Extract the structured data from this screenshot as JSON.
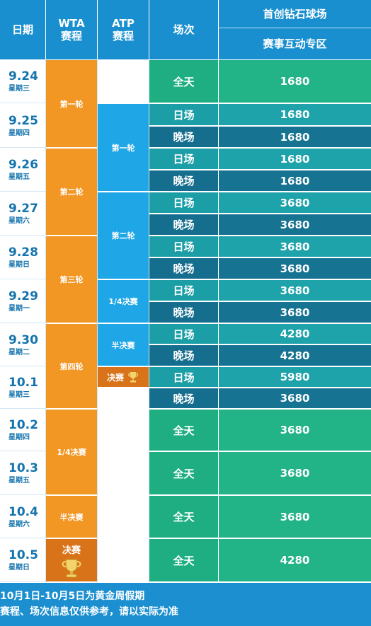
{
  "header": {
    "date": "日期",
    "wta_line1": "WTA",
    "wta_line2": "赛程",
    "atp_line1": "ATP",
    "atp_line2": "赛程",
    "session": "场次",
    "venue": "首创钻石球场",
    "zone": "赛事互动专区"
  },
  "dates": [
    {
      "date": "9.24",
      "weekday": "星期三"
    },
    {
      "date": "9.25",
      "weekday": "星期四"
    },
    {
      "date": "9.26",
      "weekday": "星期五"
    },
    {
      "date": "9.27",
      "weekday": "星期六"
    },
    {
      "date": "9.28",
      "weekday": "星期日"
    },
    {
      "date": "9.29",
      "weekday": "星期一"
    },
    {
      "date": "9.30",
      "weekday": "星期二"
    },
    {
      "date": "10.1",
      "weekday": "星期三"
    },
    {
      "date": "10.2",
      "weekday": "星期四"
    },
    {
      "date": "10.3",
      "weekday": "星期五"
    },
    {
      "date": "10.4",
      "weekday": "星期六"
    },
    {
      "date": "10.5",
      "weekday": "星期日"
    }
  ],
  "wta_rounds": [
    "第一轮",
    "第二轮",
    "第三轮",
    "第四轮",
    "1/4决赛",
    "半决赛",
    "决赛"
  ],
  "atp_rounds": [
    "第一轮",
    "第二轮",
    "1/4决赛",
    "半决赛",
    "决赛"
  ],
  "sessions": [
    {
      "session": "全天",
      "price": "1680"
    },
    {
      "session": "日场",
      "price": "1680"
    },
    {
      "session": "晚场",
      "price": "1680"
    },
    {
      "session": "日场",
      "price": "1680"
    },
    {
      "session": "晚场",
      "price": "1680"
    },
    {
      "session": "日场",
      "price": "3680"
    },
    {
      "session": "晚场",
      "price": "3680"
    },
    {
      "session": "日场",
      "price": "3680"
    },
    {
      "session": "晚场",
      "price": "3680"
    },
    {
      "session": "日场",
      "price": "3680"
    },
    {
      "session": "晚场",
      "price": "3680"
    },
    {
      "session": "日场",
      "price": "4280"
    },
    {
      "session": "晚场",
      "price": "4280"
    },
    {
      "session": "日场",
      "price": "5980"
    },
    {
      "session": "晚场",
      "price": "3680"
    },
    {
      "session": "全天",
      "price": "3680"
    },
    {
      "session": "全天",
      "price": "3680"
    },
    {
      "session": "全天",
      "price": "3680"
    },
    {
      "session": "全天",
      "price": "4280"
    }
  ],
  "footer": {
    "line1": "10月1日-10月5日为黄金周假期",
    "line2": "赛程、场次信息仅供参考，请以实际为准"
  },
  "colors": {
    "header_blue": "#1a8fcf",
    "wta_orange": "#f29624",
    "atp_blue": "#1ea6e6",
    "allday_green": "#1fae82",
    "day_teal": "#1c9ea7",
    "night_teal": "#166e8e"
  }
}
